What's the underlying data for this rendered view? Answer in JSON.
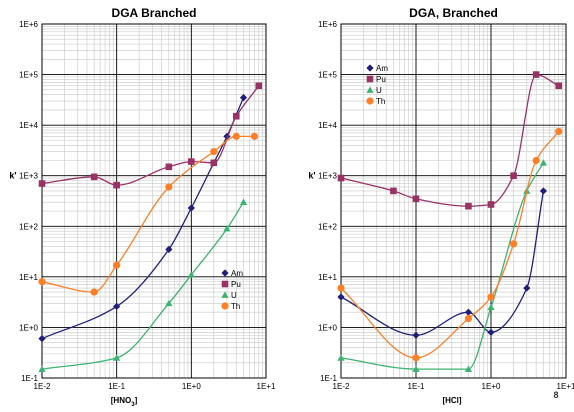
{
  "chart_data": [
    {
      "type": "scatter",
      "title": "DGA Branched",
      "xlabel": "[HNO3]",
      "xlabel_base": "[HNO",
      "xlabel_sub": "3",
      "xlabel_close": "]",
      "ylabel": "k'",
      "xscale": "log",
      "yscale": "log",
      "xlim": [
        0.01,
        10
      ],
      "ylim": [
        0.1,
        1000000
      ],
      "x_tick_labels": [
        "1E-2",
        "1E-1",
        "1E+0",
        "1E+1"
      ],
      "y_tick_labels": [
        "1E-1",
        "1E+0",
        "1E+1",
        "1E+2",
        "1E+3",
        "1E+4",
        "1E+5",
        "1E+6"
      ],
      "grid": true,
      "legend_position": "lower-right",
      "series": [
        {
          "name": "Am",
          "color": "#1f1f7a",
          "marker": "diamond",
          "x": [
            0.01,
            0.1,
            0.5,
            1,
            2,
            3,
            5
          ],
          "y": [
            0.6,
            2.6,
            35,
            230,
            1800,
            6000,
            35000
          ]
        },
        {
          "name": "Pu",
          "color": "#993366",
          "marker": "square",
          "x": [
            0.01,
            0.05,
            0.1,
            0.5,
            1,
            2,
            4,
            8
          ],
          "y": [
            700,
            950,
            650,
            1500,
            1900,
            1800,
            15000,
            60000
          ]
        },
        {
          "name": "U",
          "color": "#3cb371",
          "marker": "triangle",
          "x": [
            0.01,
            0.1,
            0.5,
            1,
            3,
            5
          ],
          "y": [
            0.15,
            0.25,
            3,
            11,
            90,
            300
          ]
        },
        {
          "name": "Th",
          "color": "#ff7f27",
          "marker": "circle",
          "x": [
            0.01,
            0.05,
            0.1,
            0.5,
            2,
            4,
            7
          ],
          "y": [
            8,
            5,
            17,
            600,
            3000,
            6000,
            6000
          ]
        }
      ]
    },
    {
      "type": "scatter",
      "title": "DGA, Branched",
      "xlabel": "[HCl]",
      "ylabel": "k'",
      "xscale": "log",
      "yscale": "log",
      "xlim": [
        0.01,
        10
      ],
      "ylim": [
        0.1,
        1000000
      ],
      "x_tick_labels": [
        "1E-2",
        "1E-1",
        "1E+0",
        "1E+1"
      ],
      "y_tick_labels": [
        "1E-1",
        "1E+0",
        "1E+1",
        "1E+2",
        "1E+3",
        "1E+4",
        "1E+5",
        "1E+6"
      ],
      "grid": true,
      "legend_position": "top-left",
      "series": [
        {
          "name": "Am",
          "color": "#1f1f7a",
          "marker": "diamond",
          "x": [
            0.01,
            0.1,
            0.5,
            1,
            3,
            5
          ],
          "y": [
            4,
            0.7,
            2,
            0.8,
            6,
            500
          ]
        },
        {
          "name": "Pu",
          "color": "#993366",
          "marker": "square",
          "x": [
            0.01,
            0.05,
            0.1,
            0.5,
            1,
            2,
            4,
            8
          ],
          "y": [
            900,
            500,
            350,
            250,
            270,
            1000,
            100000,
            60000
          ]
        },
        {
          "name": "U",
          "color": "#3cb371",
          "marker": "triangle",
          "x": [
            0.01,
            0.1,
            0.5,
            1,
            3,
            5
          ],
          "y": [
            0.25,
            0.15,
            0.15,
            2.5,
            500,
            1800
          ]
        },
        {
          "name": "Th",
          "color": "#ff7f27",
          "marker": "circle",
          "x": [
            0.01,
            0.1,
            0.5,
            1,
            2,
            4,
            8
          ],
          "y": [
            6,
            0.25,
            1.5,
            4,
            45,
            2000,
            7500
          ]
        }
      ]
    }
  ],
  "page_number": "8"
}
